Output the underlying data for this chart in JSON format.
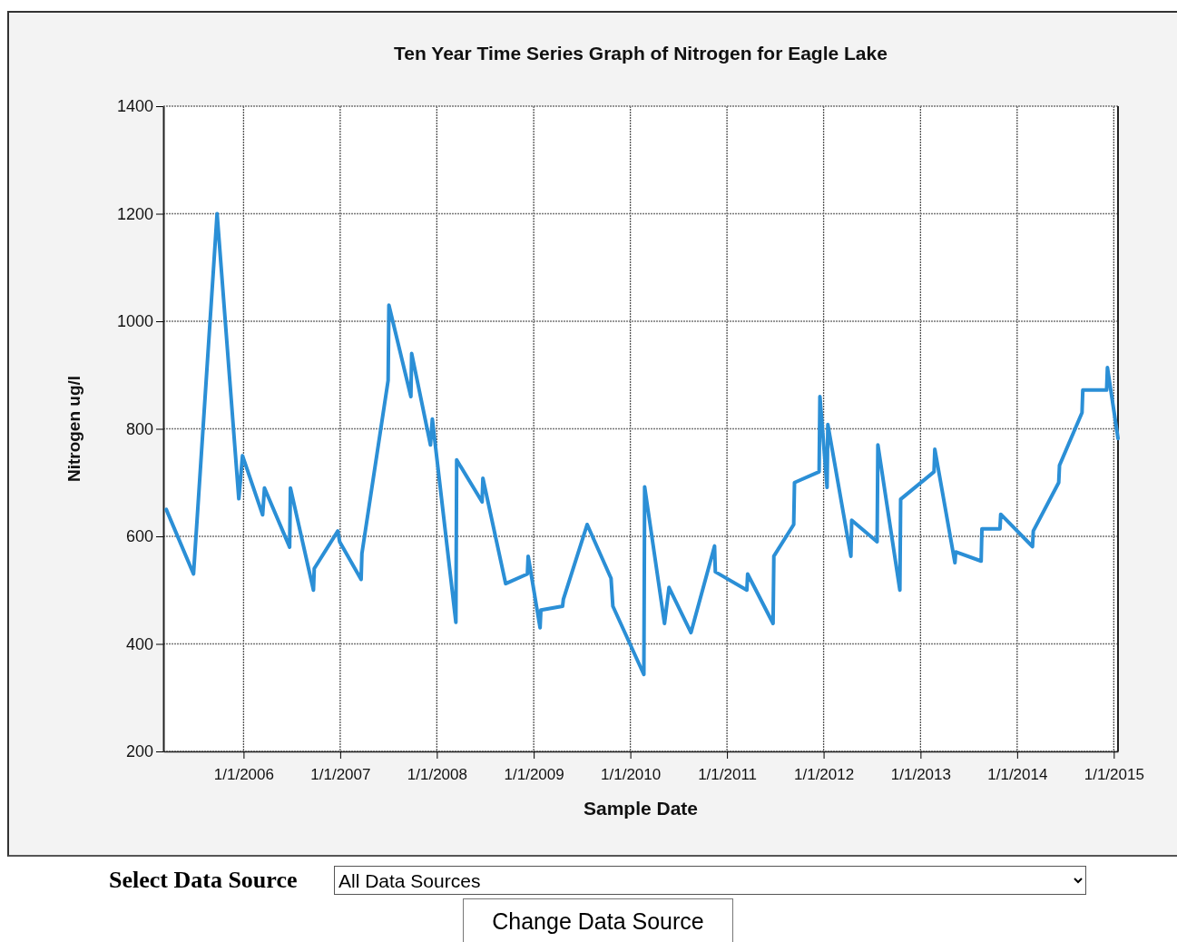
{
  "chart_data": {
    "type": "line",
    "title": "Ten Year Time Series Graph of Nitrogen for Eagle Lake",
    "xlabel": "Sample Date",
    "ylabel": "Nitrogen ug/l",
    "annotations": [
      "Select Data Source",
      "All Data Sources",
      "Change Data Source"
    ],
    "x": [
      "2005-03-15",
      "2005-06-26",
      "2005-09-23",
      "2005-12-14",
      "2005-12-28",
      "2006-03-14",
      "2006-03-21",
      "2006-06-24",
      "2006-06-27",
      "2006-09-22",
      "2006-09-25",
      "2006-12-23",
      "2006-12-30",
      "2007-03-21",
      "2007-03-24",
      "2007-07-01",
      "2007-07-04",
      "2007-09-25",
      "2007-09-28",
      "2007-12-08",
      "2007-12-15",
      "2008-03-13",
      "2008-03-16",
      "2008-06-20",
      "2008-06-23",
      "2008-09-17",
      "2008-12-08",
      "2008-12-11",
      "2009-01-25",
      "2009-01-28",
      "2009-04-20",
      "2009-04-23",
      "2009-07-22",
      "2009-10-20",
      "2009-10-27",
      "2010-02-21",
      "2010-02-24",
      "2010-05-10",
      "2010-05-27",
      "2010-08-18",
      "2010-11-15",
      "2010-11-18",
      "2011-03-17",
      "2011-03-20",
      "2011-06-24",
      "2011-06-27",
      "2011-09-10",
      "2011-09-13",
      "2011-12-15",
      "2011-12-18",
      "2012-01-14",
      "2012-01-17",
      "2012-04-13",
      "2012-04-16",
      "2012-07-21",
      "2012-07-24",
      "2012-10-15",
      "2012-10-18",
      "2013-02-21",
      "2013-02-24",
      "2013-05-11",
      "2013-05-14",
      "2013-08-18",
      "2013-08-21",
      "2013-10-28",
      "2013-10-31",
      "2014-02-28",
      "2014-03-03",
      "2014-06-07",
      "2014-06-10",
      "2014-09-03",
      "2014-09-06",
      "2014-12-05",
      "2014-12-08",
      "2015-01-17"
    ],
    "series": [
      {
        "color": "#2b8fd6",
        "values": [
          650,
          530,
          1200,
          670,
          750,
          640,
          690,
          580,
          690,
          500,
          540,
          610,
          590,
          520,
          568,
          890,
          1030,
          860,
          940,
          770,
          818,
          440,
          742,
          664,
          708,
          512,
          530,
          563,
          430,
          463,
          470,
          483,
          622,
          522,
          470,
          343,
          692,
          438,
          505,
          421,
          582,
          534,
          500,
          530,
          438,
          563,
          622,
          700,
          720,
          860,
          691,
          808,
          563,
          630,
          590,
          770,
          500,
          669,
          720,
          762,
          551,
          571,
          554,
          614,
          614,
          641,
          581,
          610,
          700,
          732,
          830,
          872,
          872,
          914,
          782
        ]
      }
    ],
    "xlim": [
      "2005-03-04",
      "2015-01-17"
    ],
    "xticks": [
      {
        "value": "2006-01-01",
        "label": "1/1/2006"
      },
      {
        "value": "2007-01-01",
        "label": "1/1/2007"
      },
      {
        "value": "2008-01-01",
        "label": "1/1/2008"
      },
      {
        "value": "2009-01-01",
        "label": "1/1/2009"
      },
      {
        "value": "2010-01-01",
        "label": "1/1/2010"
      },
      {
        "value": "2011-01-01",
        "label": "1/1/2011"
      },
      {
        "value": "2012-01-01",
        "label": "1/1/2012"
      },
      {
        "value": "2013-01-01",
        "label": "1/1/2013"
      },
      {
        "value": "2014-01-01",
        "label": "1/1/2014"
      },
      {
        "value": "2015-01-01",
        "label": "1/1/2015"
      }
    ],
    "ylim": [
      200,
      1400
    ],
    "yticks": [
      200,
      400,
      600,
      800,
      1000,
      1200,
      1400
    ],
    "grid": true,
    "marker": "none",
    "line_style": "solid"
  }
}
